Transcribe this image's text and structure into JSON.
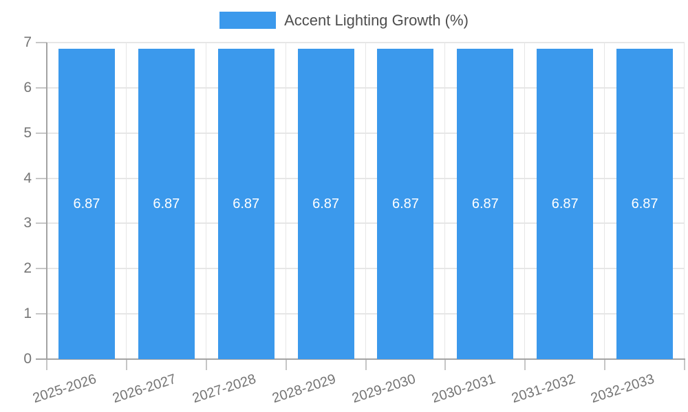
{
  "chart_data": {
    "type": "bar",
    "title": "",
    "categories": [
      "2025-2026",
      "2026-2027",
      "2027-2028",
      "2028-2029",
      "2029-2030",
      "2030-2031",
      "2031-2032",
      "2032-2033"
    ],
    "series": [
      {
        "name": "Accent Lighting Growth (%)",
        "values": [
          6.87,
          6.87,
          6.87,
          6.87,
          6.87,
          6.87,
          6.87,
          6.87
        ],
        "color": "#3B99EC"
      }
    ],
    "value_labels": [
      "6.87",
      "6.87",
      "6.87",
      "6.87",
      "6.87",
      "6.87",
      "6.87",
      "6.87"
    ],
    "xlabel": "",
    "ylabel": "",
    "ylim": [
      0,
      7
    ],
    "yticks": [
      "0",
      "1",
      "2",
      "3",
      "4",
      "5",
      "6",
      "7"
    ],
    "grid": true,
    "legend_position": "top"
  },
  "colors": {
    "bar": "#3B99EC",
    "grid": "#e6e6e6",
    "axis": "#a3a3a3",
    "tick": "#c6c6c6",
    "axis_label": "#757575",
    "legend_text": "#4e4e4e",
    "value_label": "#ffffff",
    "background": "#ffffff"
  }
}
